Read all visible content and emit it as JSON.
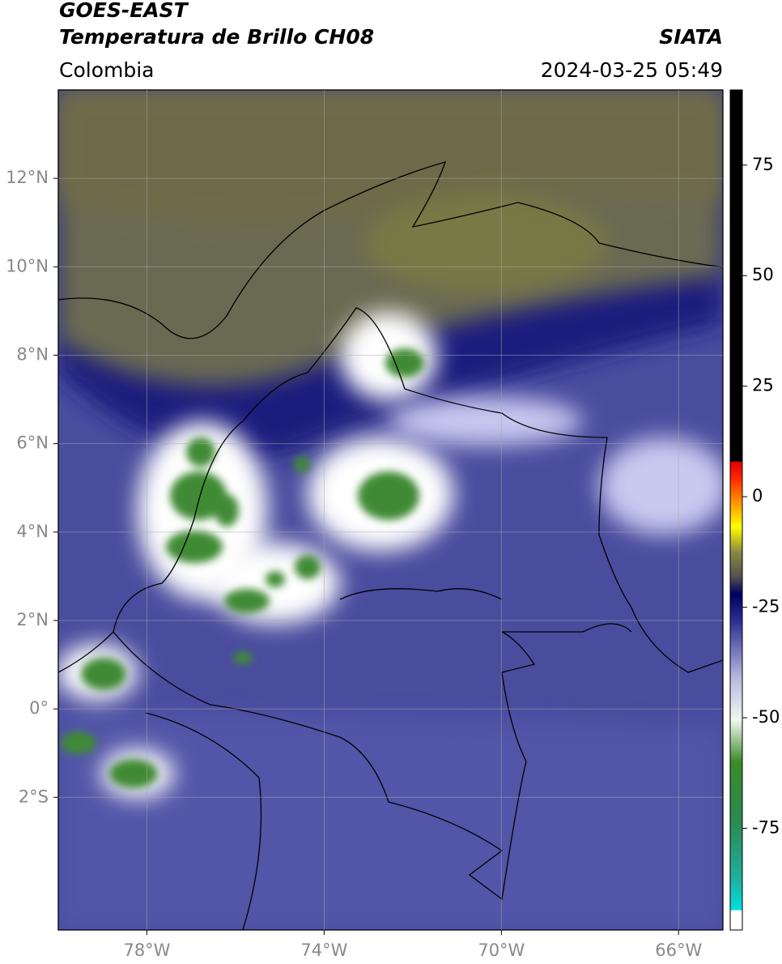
{
  "header": {
    "title": "GOES-EAST",
    "subtitle": "Temperatura de Brillo CH08",
    "region": "Colombia",
    "source": "SIATA",
    "datetime": "2024-03-25 05:49"
  },
  "map": {
    "xlim": [
      -80,
      -65
    ],
    "ylim": [
      -5,
      14
    ],
    "xticks": [
      {
        "value": -78,
        "label": "78°W"
      },
      {
        "value": -74,
        "label": "74°W"
      },
      {
        "value": -70,
        "label": "70°W"
      },
      {
        "value": -66,
        "label": "66°W"
      }
    ],
    "yticks": [
      {
        "value": 12,
        "label": "12°N"
      },
      {
        "value": 10,
        "label": "10°N"
      },
      {
        "value": 8,
        "label": "8°N"
      },
      {
        "value": 6,
        "label": "6°N"
      },
      {
        "value": 4,
        "label": "4°N"
      },
      {
        "value": 2,
        "label": "2°N"
      },
      {
        "value": 0,
        "label": "0°"
      },
      {
        "value": -2,
        "label": "2°S"
      }
    ],
    "grid": true
  },
  "colorbar": {
    "lim": [
      -98,
      92
    ],
    "ticks": [
      75,
      50,
      25,
      0,
      -25,
      -50,
      -75
    ]
  }
}
